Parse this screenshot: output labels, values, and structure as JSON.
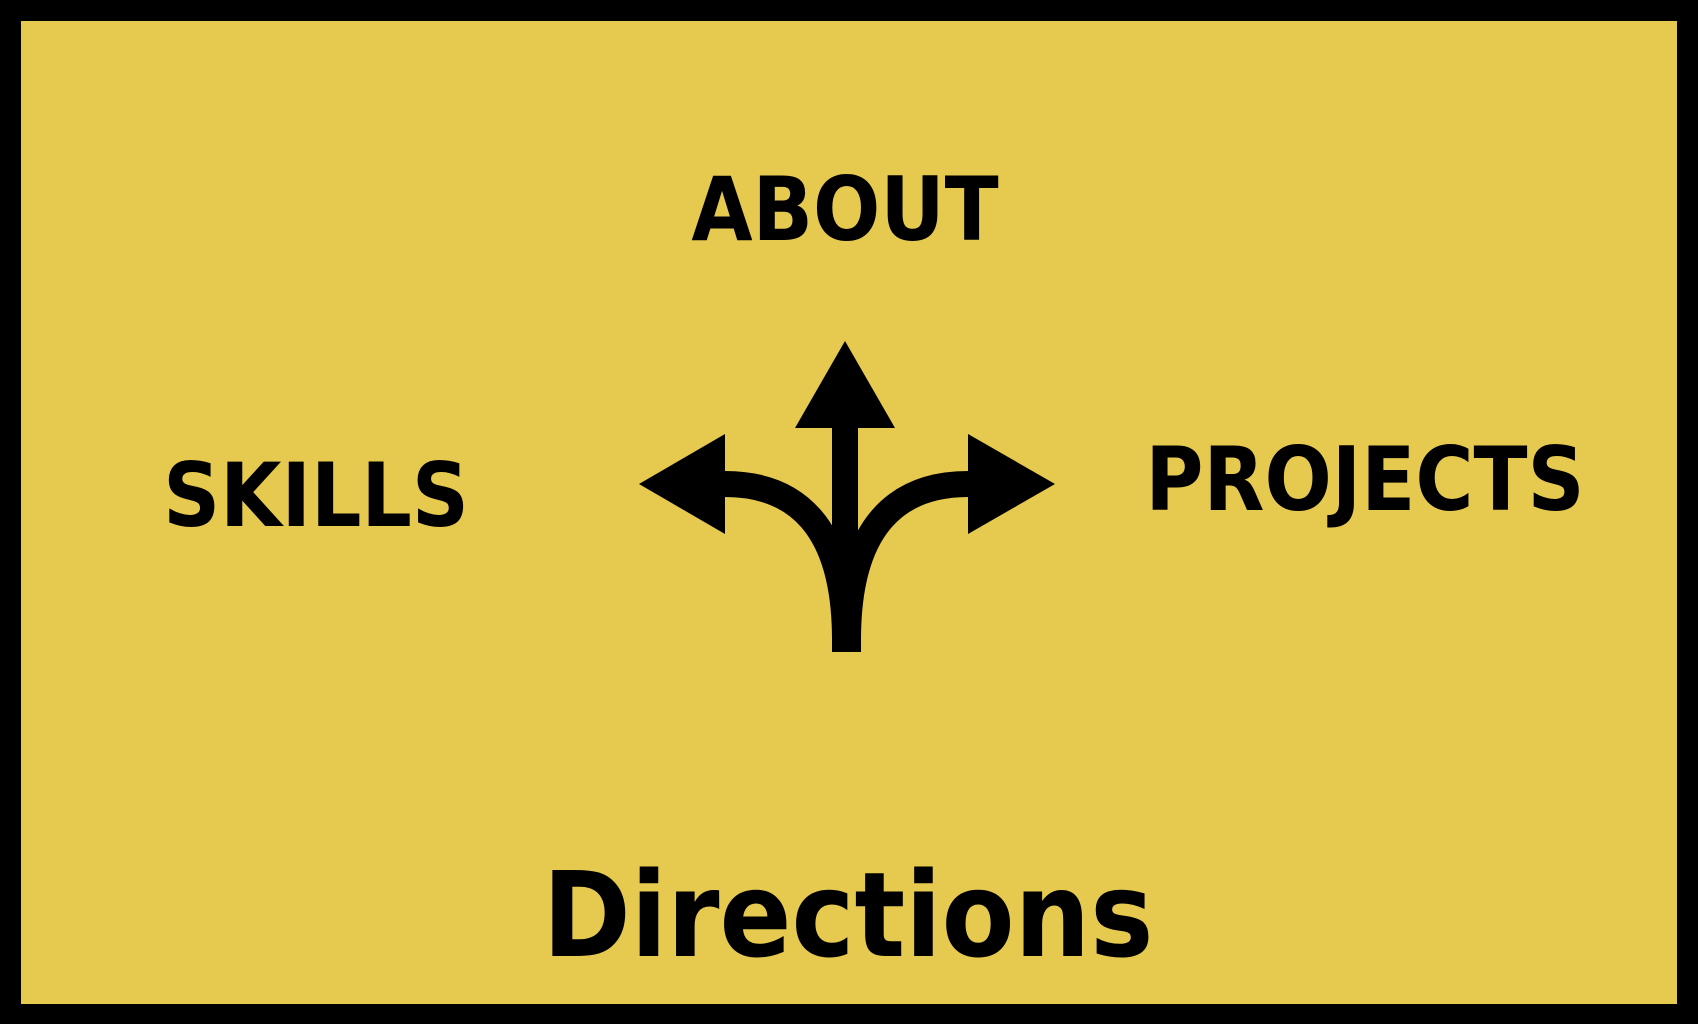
{
  "nav": {
    "about": "ABOUT",
    "skills": "SKILLS",
    "projects": "PROJECTS"
  },
  "page": {
    "title": "Directions"
  },
  "icons": {
    "center": "three-way-arrows-icon"
  },
  "colors": {
    "background": "#E6C94F",
    "border": "#000000",
    "ink": "#000000"
  }
}
